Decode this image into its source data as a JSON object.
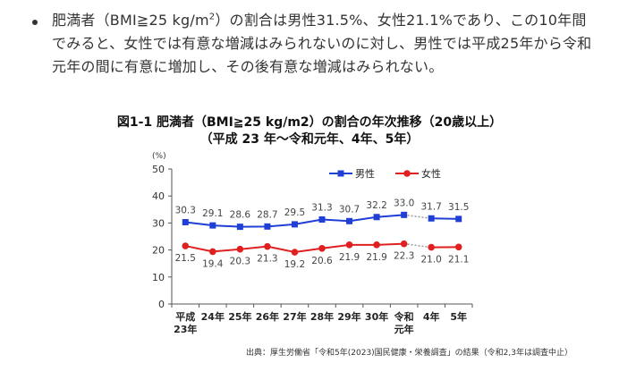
{
  "paragraph": {
    "part1": "肥満者（BMI≧25 kg/m",
    "sup": "2",
    "part2": "）の割合は男性31.5%、女性21.1%であり、この10年間でみると、女性では有意な増減はみられないのに対し、男性では平成25年から令和元年の間に有意に増加し、その後有意な増減はみられない。"
  },
  "chart_data": {
    "type": "line",
    "title": "図1-1 肥満者（BMI≧25 kg/m2）の割合の年次推移（20歳以上）",
    "subtitle": "（平成 23 年～令和元年、4年、5年）",
    "ylabel": "(%)",
    "ylim": [
      0,
      50
    ],
    "yticks": [
      0,
      10,
      20,
      30,
      40,
      50
    ],
    "categories": [
      [
        "平成",
        "23年"
      ],
      [
        "24年"
      ],
      [
        "25年"
      ],
      [
        "26年"
      ],
      [
        "27年"
      ],
      [
        "28年"
      ],
      [
        "29年"
      ],
      [
        "30年"
      ],
      [
        "令和",
        "元年"
      ],
      [
        "4年"
      ],
      [
        "5年"
      ]
    ],
    "gap_after_index": 8,
    "legend_position": "top-right",
    "series": [
      {
        "name": "男性",
        "color": "#1f3fd6",
        "marker": "square",
        "values": [
          30.3,
          29.1,
          28.6,
          28.7,
          29.5,
          31.3,
          30.7,
          32.2,
          33.0,
          31.7,
          31.5
        ]
      },
      {
        "name": "女性",
        "color": "#e02020",
        "marker": "circle",
        "values": [
          21.5,
          19.4,
          20.3,
          21.3,
          19.2,
          20.6,
          21.9,
          21.9,
          22.3,
          21.0,
          21.1
        ]
      }
    ],
    "source": "出典：厚生労働省「令和5年(2023)国民健康・栄養調査」の結果（令和2,3年は調査中止）"
  }
}
